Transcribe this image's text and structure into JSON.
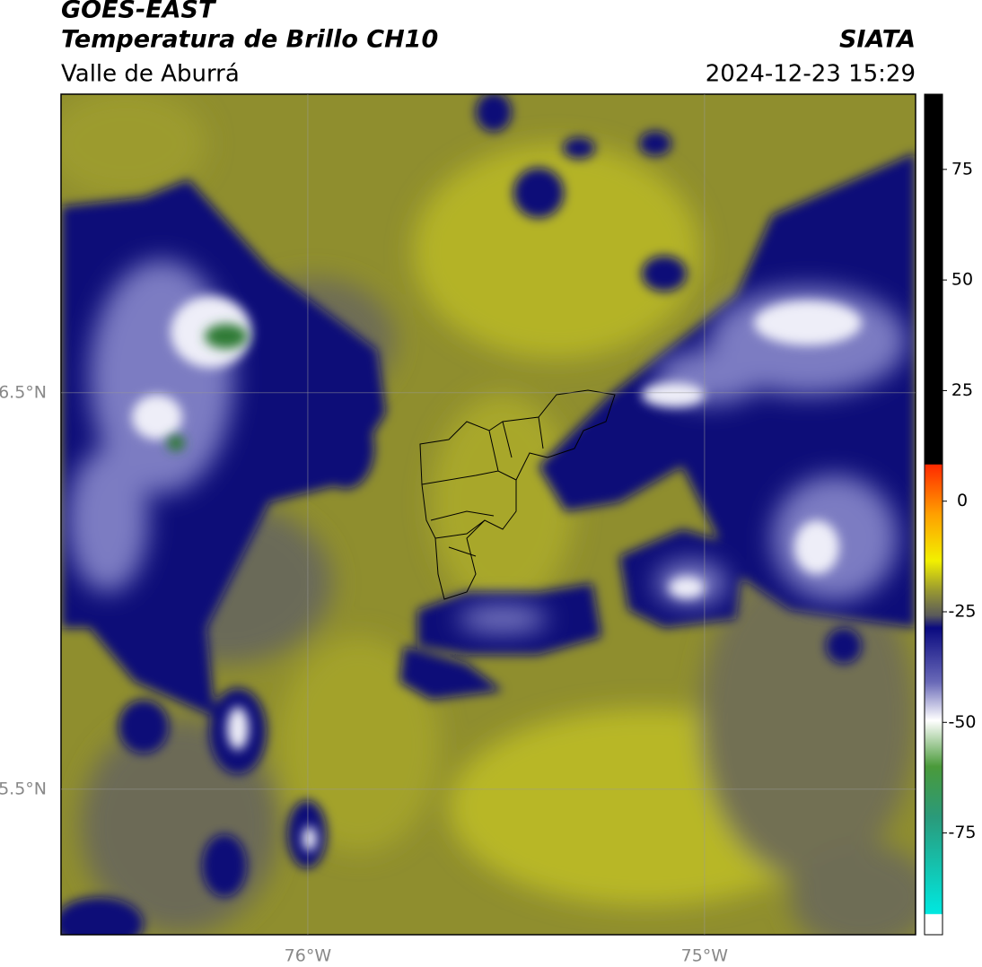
{
  "header": {
    "title": "GOES-EAST",
    "subtitle": "Temperatura de Brillo CH10",
    "region": "Valle de Aburrá",
    "source": "SIATA",
    "timestamp": "2024-12-23 15:29"
  },
  "map": {
    "xlim": [
      -76.622,
      -74.468
    ],
    "ylim": [
      5.133,
      7.253
    ],
    "xticks": [
      {
        "value": -76,
        "label": "76°W"
      },
      {
        "value": -75,
        "label": "75°W"
      }
    ],
    "yticks": [
      {
        "value": 6.5,
        "label": "6.5°N"
      },
      {
        "value": 5.5,
        "label": "5.5°N"
      }
    ],
    "grid": true
  },
  "colorbar": {
    "lim": [
      -98,
      92
    ],
    "ticks": [
      75,
      50,
      25,
      0,
      -25,
      -50,
      -75
    ]
  }
}
